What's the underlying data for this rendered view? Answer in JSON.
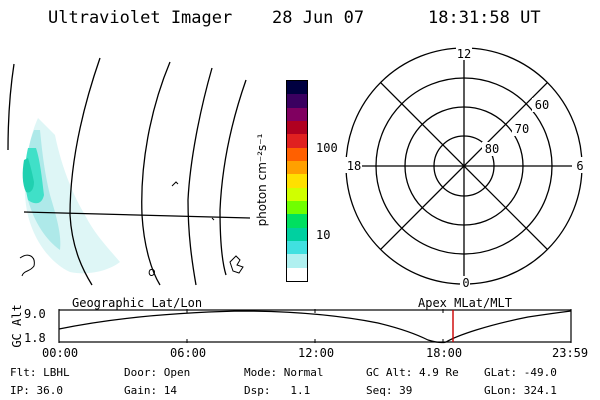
{
  "header": {
    "title": "Ultraviolet Imager",
    "date": "28 Jun 07",
    "time": "18:31:58 UT"
  },
  "colorbar": {
    "unit_label": "photon cm⁻²s⁻¹",
    "ticks": [
      "100",
      "10"
    ],
    "colors": [
      "#000040",
      "#3a0060",
      "#800060",
      "#b00020",
      "#e02020",
      "#ff6000",
      "#ffa000",
      "#ffe000",
      "#d0ff00",
      "#70ff00",
      "#00e060",
      "#00d0a0",
      "#40e0e0",
      "#b0f0f0",
      "#ffffff"
    ]
  },
  "polar_plot": {
    "mlt_labels": [
      "12",
      "18",
      "6",
      "0"
    ],
    "lat_labels": [
      "60",
      "70",
      "80"
    ]
  },
  "timeline": {
    "left_label": "Geographic Lat/Lon",
    "right_label": "Apex MLat/MLT",
    "y_axis_title": "GC Alt",
    "y_ticks": [
      "9.0",
      "1.8"
    ],
    "x_ticks": [
      "00:00",
      "06:00",
      "12:00",
      "18:00",
      "23:59"
    ],
    "marker_time": "18:31:58",
    "marker_color": "#cc0000"
  },
  "status": {
    "row1": [
      {
        "key": "Flt:",
        "value": "LBHL"
      },
      {
        "key": "Door:",
        "value": "Open"
      },
      {
        "key": "Mode:",
        "value": "Normal"
      },
      {
        "key": "GC Alt:",
        "value": "4.9 Re"
      },
      {
        "key": "GLat:",
        "value": "-49.0"
      }
    ],
    "row2": [
      {
        "key": "IP:",
        "value": "36.0"
      },
      {
        "key": "Gain:",
        "value": "14"
      },
      {
        "key": "Dsp:",
        "value": "1.1"
      },
      {
        "key": "Seq:",
        "value": "39"
      },
      {
        "key": "GLon:",
        "value": "324.1"
      }
    ]
  }
}
